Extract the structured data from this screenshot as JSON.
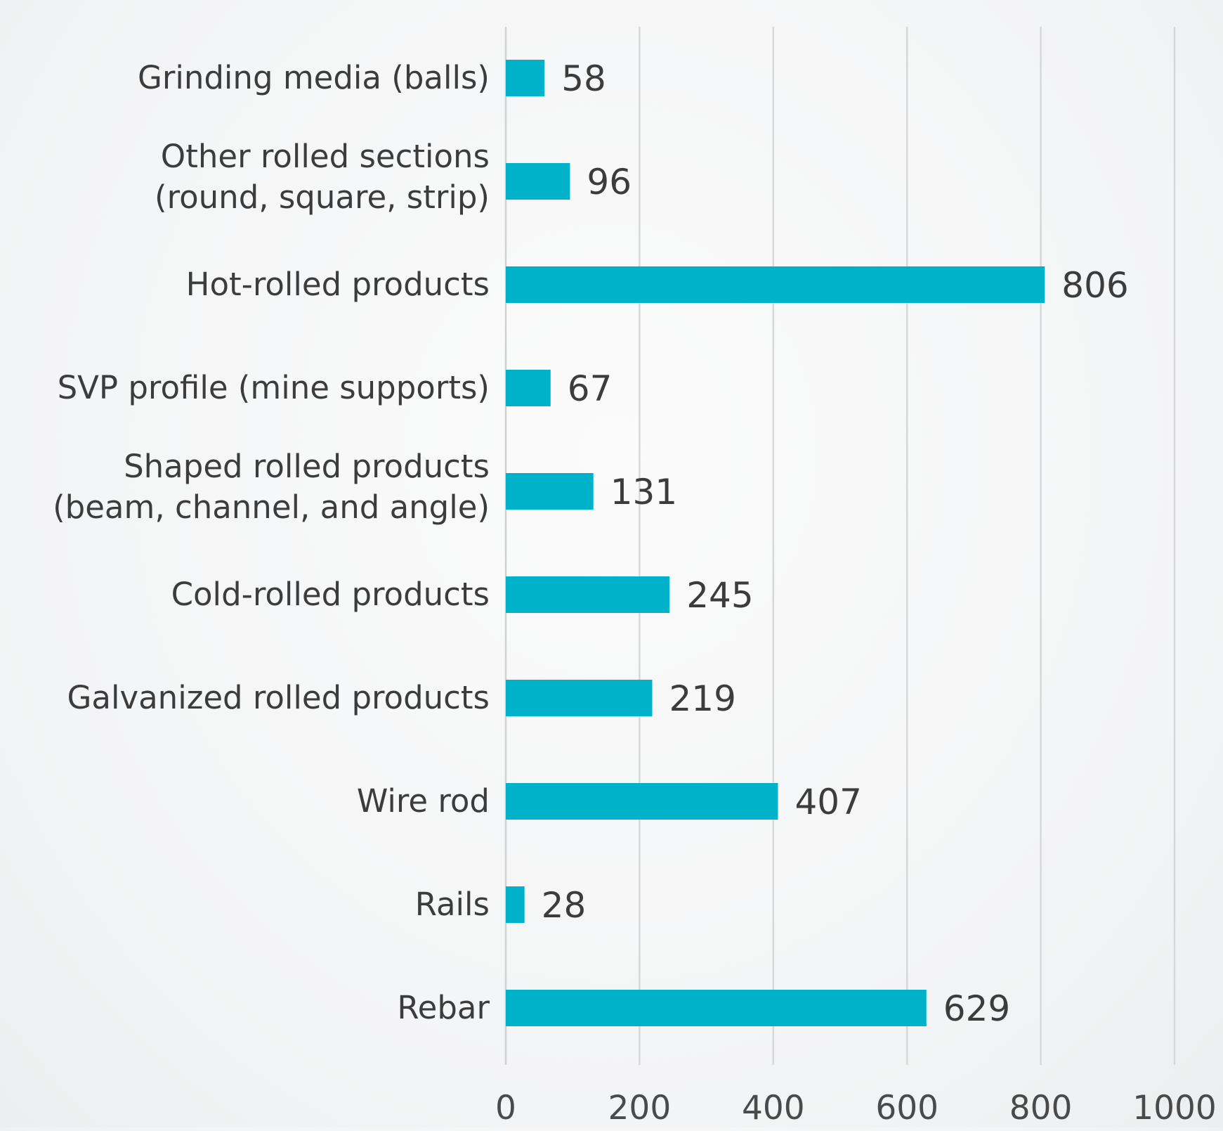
{
  "chart_data": {
    "type": "bar",
    "orientation": "horizontal",
    "title": "",
    "xlabel": "",
    "ylabel": "",
    "categories": [
      [
        "Grinding media (balls)"
      ],
      [
        "Other rolled sections",
        "(round, square, strip)"
      ],
      [
        "Hot-rolled products"
      ],
      [
        "SVP profile (mine supports)"
      ],
      [
        "Shaped rolled products",
        "(beam, channel, and angle)"
      ],
      [
        "Cold-rolled products"
      ],
      [
        "Galvanized rolled products"
      ],
      [
        "Wire rod"
      ],
      [
        "Rails"
      ],
      [
        "Rebar"
      ]
    ],
    "values": [
      58,
      96,
      806,
      67,
      131,
      245,
      219,
      407,
      28,
      629
    ],
    "value_labels": [
      "58",
      "96",
      "806",
      "67",
      "131",
      "245",
      "219",
      "407",
      "28",
      "629"
    ],
    "xlim": [
      0,
      1000
    ],
    "xticks": [
      0,
      200,
      400,
      600,
      800,
      1000
    ],
    "xtick_labels": [
      "0",
      "200",
      "400",
      "600",
      "800",
      "1000"
    ],
    "grid": "vertical",
    "legend": "none",
    "bar_color": "#00b2c9"
  }
}
